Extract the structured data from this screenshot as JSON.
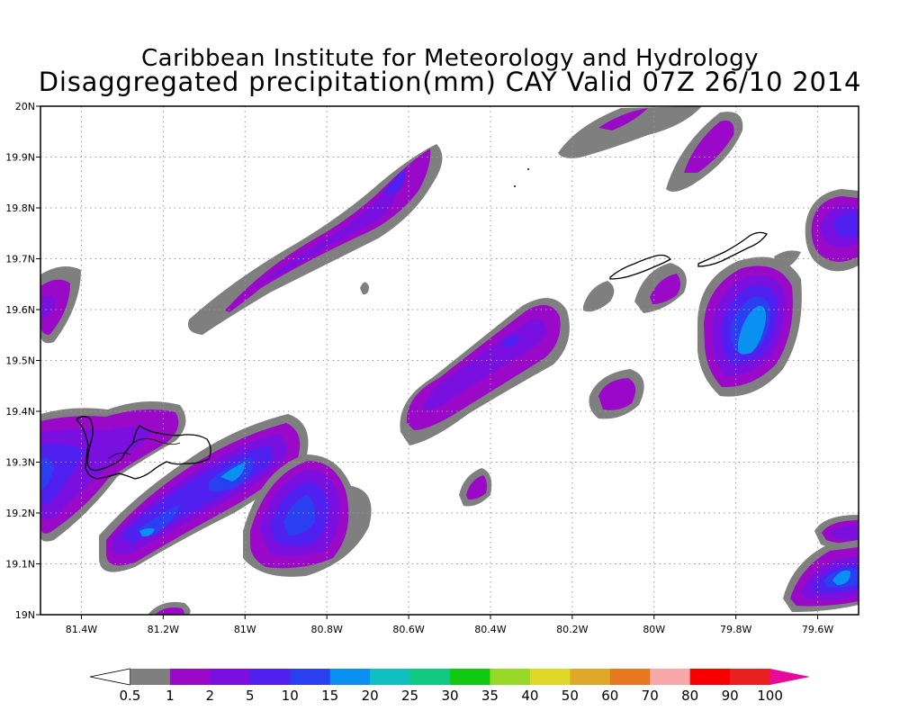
{
  "header": {
    "institute": "Caribbean Institute for Meteorology and Hydrology",
    "product": "Disaggregated precipitation(mm) CAY Valid 07Z 26/10 2014"
  },
  "map": {
    "lon_range": [
      -81.5,
      -79.5
    ],
    "lat_range": [
      19.0,
      20.0
    ],
    "grid": true,
    "lon_ticks": [
      "81.4W",
      "81.2W",
      "81W",
      "80.8W",
      "80.6W",
      "80.4W",
      "80.2W",
      "80W",
      "79.8W",
      "79.6W"
    ],
    "lat_ticks": [
      "19N",
      "19.1N",
      "19.2N",
      "19.3N",
      "19.4N",
      "19.5N",
      "19.6N",
      "19.7N",
      "19.8N",
      "19.9N",
      "20N"
    ]
  },
  "legend": {
    "labels": [
      "0.5",
      "1",
      "2",
      "5",
      "10",
      "15",
      "20",
      "25",
      "30",
      "35",
      "40",
      "50",
      "60",
      "70",
      "80",
      "90",
      "100"
    ],
    "colors": [
      "#ffffff",
      "#7f7f7f",
      "#9a08c8",
      "#7a10e0",
      "#5020f0",
      "#2a40f0",
      "#0a90f0",
      "#10c0c0",
      "#10c880",
      "#10c810",
      "#98d828",
      "#e0d828",
      "#e0a828",
      "#e87820",
      "#f8a8a8",
      "#f80000",
      "#e82020",
      "#e8089a"
    ]
  }
}
